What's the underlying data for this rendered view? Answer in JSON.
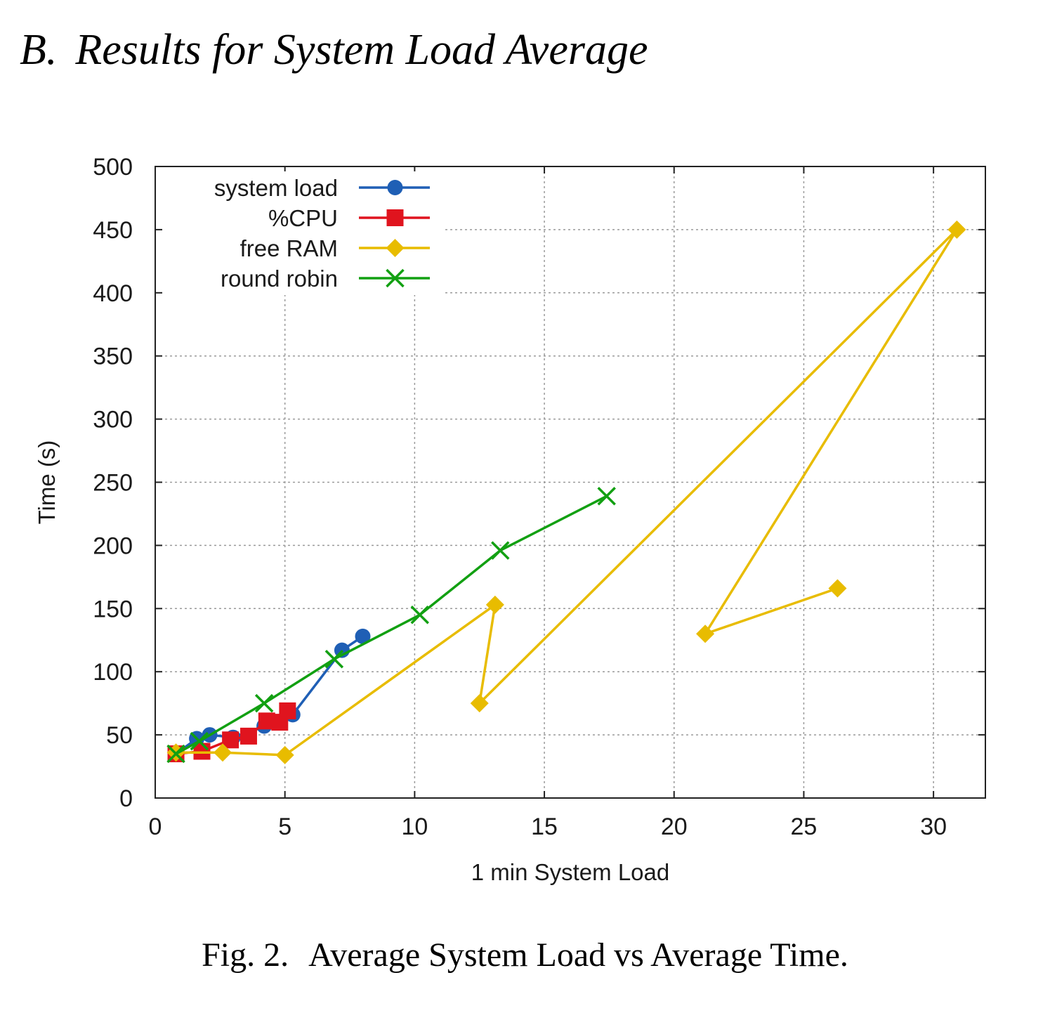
{
  "section": {
    "number": "B.",
    "title": "Results for System Load Average"
  },
  "caption": {
    "label": "Fig. 2.",
    "text": "Average System Load vs Average Time."
  },
  "chart_data": {
    "type": "line",
    "title": "",
    "xlabel": "1 min System Load",
    "ylabel": "Time (s)",
    "xlim": [
      0,
      32
    ],
    "ylim": [
      0,
      500
    ],
    "xticks": [
      0,
      5,
      10,
      15,
      20,
      25,
      30
    ],
    "yticks": [
      0,
      50,
      100,
      150,
      200,
      250,
      300,
      350,
      400,
      450,
      500
    ],
    "grid": true,
    "legend_position": "top-left",
    "series": [
      {
        "name": "system load",
        "color": "#1f5fb5",
        "marker": "circle",
        "points": [
          [
            0.8,
            35
          ],
          [
            1.6,
            47
          ],
          [
            2.1,
            50
          ],
          [
            3.0,
            48
          ],
          [
            4.2,
            57
          ],
          [
            5.3,
            66
          ],
          [
            7.2,
            117
          ],
          [
            8.0,
            128
          ]
        ]
      },
      {
        "name": "%CPU",
        "color": "#e0141e",
        "marker": "square",
        "points": [
          [
            0.8,
            35
          ],
          [
            1.8,
            37
          ],
          [
            2.9,
            46
          ],
          [
            3.6,
            49
          ],
          [
            4.3,
            61
          ],
          [
            4.8,
            60
          ],
          [
            5.1,
            69
          ]
        ]
      },
      {
        "name": "free RAM",
        "color": "#e8bc00",
        "marker": "diamond",
        "points": [
          [
            0.8,
            36
          ],
          [
            2.6,
            36
          ],
          [
            5.0,
            34
          ],
          [
            13.1,
            153
          ],
          [
            12.5,
            75
          ],
          [
            30.9,
            450
          ],
          [
            21.2,
            130
          ],
          [
            26.3,
            166
          ]
        ]
      },
      {
        "name": "round robin",
        "color": "#12a012",
        "marker": "x",
        "points": [
          [
            0.8,
            35
          ],
          [
            1.7,
            45
          ],
          [
            4.2,
            75
          ],
          [
            6.9,
            110
          ],
          [
            10.2,
            145
          ],
          [
            13.3,
            196
          ],
          [
            17.4,
            239
          ]
        ]
      }
    ]
  }
}
